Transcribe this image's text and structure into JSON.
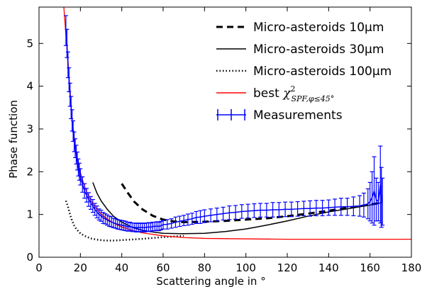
{
  "chart_data": {
    "type": "line",
    "xlabel": "Scattering angle in °",
    "ylabel": "Phase function",
    "xlim": [
      0,
      180
    ],
    "ylim": [
      0,
      5.85
    ],
    "x_ticks": [
      0,
      20,
      40,
      60,
      80,
      100,
      120,
      140,
      160,
      180
    ],
    "y_ticks": [
      0,
      1,
      2,
      3,
      4,
      5
    ],
    "grid": false,
    "legend_position": "top-right",
    "series": [
      {
        "name": "Micro-asteroids 10μm",
        "style": "dashed",
        "color": "#000000",
        "x": [
          40,
          43,
          46,
          50,
          55,
          60,
          65,
          70,
          80,
          90,
          100,
          110,
          120,
          130,
          140,
          150,
          160,
          166
        ],
        "y": [
          1.72,
          1.5,
          1.3,
          1.12,
          0.97,
          0.88,
          0.84,
          0.82,
          0.83,
          0.85,
          0.88,
          0.91,
          0.96,
          1.02,
          1.09,
          1.16,
          1.23,
          1.28
        ]
      },
      {
        "name": "Micro-asteroids 30μm",
        "style": "solid",
        "color": "#000000",
        "x": [
          26,
          28,
          30,
          33,
          36,
          40,
          45,
          50,
          55,
          60,
          70,
          80,
          90,
          100,
          110,
          120,
          130,
          140,
          150,
          160,
          166
        ],
        "y": [
          1.75,
          1.5,
          1.32,
          1.12,
          0.96,
          0.82,
          0.7,
          0.63,
          0.59,
          0.56,
          0.55,
          0.56,
          0.6,
          0.66,
          0.75,
          0.85,
          0.96,
          1.06,
          1.14,
          1.22,
          1.28
        ]
      },
      {
        "name": "Micro-asteroids 100μm",
        "style": "dotted",
        "color": "#000000",
        "x": [
          13,
          14,
          15,
          16,
          17,
          18,
          20,
          22,
          25,
          28,
          32,
          36,
          40,
          50,
          60,
          70
        ],
        "y": [
          1.32,
          1.18,
          1.0,
          0.85,
          0.74,
          0.66,
          0.56,
          0.5,
          0.44,
          0.41,
          0.39,
          0.39,
          0.4,
          0.43,
          0.47,
          0.5
        ]
      },
      {
        "name": "best",
        "name_math": "χ",
        "name_sup": "2",
        "name_sub": "SPF,φ≤45°",
        "style": "solid",
        "color": "#ff0000",
        "x": [
          12,
          13,
          14,
          15,
          16,
          17,
          18,
          19,
          20,
          22,
          24,
          26,
          28,
          30,
          33,
          36,
          40,
          45,
          50,
          60,
          70,
          80,
          100,
          120,
          140,
          160,
          180
        ],
        "y": [
          5.85,
          5.2,
          4.6,
          3.9,
          3.2,
          2.8,
          2.45,
          2.2,
          1.98,
          1.65,
          1.42,
          1.25,
          1.12,
          1.01,
          0.89,
          0.8,
          0.71,
          0.63,
          0.57,
          0.5,
          0.46,
          0.44,
          0.43,
          0.42,
          0.42,
          0.42,
          0.42
        ]
      },
      {
        "name": "Measurements",
        "style": "errorbar",
        "color": "#0000ff",
        "x": [
          13,
          13.5,
          14,
          14.5,
          15,
          15.5,
          16,
          16.5,
          17,
          17.5,
          18,
          18.5,
          19,
          19.5,
          20,
          21,
          22,
          23,
          24,
          25,
          26,
          27,
          28,
          29,
          30,
          31,
          32,
          33,
          34,
          35,
          36,
          37,
          38,
          39,
          40,
          41,
          42,
          43,
          44,
          45,
          46,
          47,
          48,
          49,
          50,
          51,
          52,
          53,
          54,
          55,
          56,
          57,
          58,
          59,
          60,
          62,
          64,
          66,
          68,
          70,
          72,
          74,
          76,
          78,
          80,
          83,
          86,
          89,
          92,
          95,
          98,
          101,
          104,
          107,
          110,
          113,
          116,
          119,
          122,
          125,
          128,
          131,
          134,
          137,
          140,
          143,
          146,
          149,
          152,
          155,
          157,
          159,
          160,
          161,
          162,
          163,
          164,
          165,
          165.5,
          166
        ],
        "y": [
          5.3,
          5.0,
          4.5,
          4.15,
          3.8,
          3.5,
          3.2,
          2.95,
          2.7,
          2.55,
          2.4,
          2.25,
          2.1,
          2.0,
          1.88,
          1.7,
          1.55,
          1.45,
          1.35,
          1.27,
          1.2,
          1.12,
          1.06,
          1.0,
          0.97,
          0.92,
          0.9,
          0.87,
          0.84,
          0.83,
          0.8,
          0.79,
          0.77,
          0.76,
          0.75,
          0.74,
          0.73,
          0.71,
          0.72,
          0.7,
          0.7,
          0.69,
          0.7,
          0.69,
          0.7,
          0.69,
          0.7,
          0.71,
          0.7,
          0.72,
          0.72,
          0.73,
          0.72,
          0.74,
          0.76,
          0.77,
          0.79,
          0.82,
          0.84,
          0.86,
          0.88,
          0.9,
          0.93,
          0.94,
          0.96,
          0.98,
          1.0,
          1.02,
          1.04,
          1.05,
          1.07,
          1.08,
          1.09,
          1.1,
          1.1,
          1.11,
          1.11,
          1.12,
          1.12,
          1.13,
          1.14,
          1.14,
          1.15,
          1.15,
          1.16,
          1.17,
          1.18,
          1.18,
          1.19,
          1.2,
          1.22,
          1.25,
          1.3,
          1.4,
          1.55,
          1.35,
          1.3,
          1.7,
          1.4,
          1.3
        ],
        "err": [
          0.35,
          0.33,
          0.3,
          0.28,
          0.27,
          0.26,
          0.25,
          0.24,
          0.23,
          0.22,
          0.22,
          0.21,
          0.2,
          0.2,
          0.19,
          0.18,
          0.17,
          0.16,
          0.16,
          0.15,
          0.15,
          0.14,
          0.14,
          0.13,
          0.13,
          0.13,
          0.12,
          0.12,
          0.12,
          0.12,
          0.11,
          0.11,
          0.11,
          0.11,
          0.11,
          0.11,
          0.11,
          0.1,
          0.1,
          0.1,
          0.1,
          0.1,
          0.1,
          0.1,
          0.1,
          0.1,
          0.1,
          0.1,
          0.1,
          0.1,
          0.1,
          0.1,
          0.1,
          0.1,
          0.1,
          0.11,
          0.11,
          0.12,
          0.12,
          0.12,
          0.13,
          0.13,
          0.14,
          0.15,
          0.15,
          0.15,
          0.15,
          0.15,
          0.16,
          0.16,
          0.16,
          0.16,
          0.16,
          0.16,
          0.16,
          0.17,
          0.17,
          0.17,
          0.17,
          0.17,
          0.17,
          0.18,
          0.18,
          0.18,
          0.18,
          0.19,
          0.2,
          0.2,
          0.22,
          0.24,
          0.28,
          0.35,
          0.45,
          0.6,
          0.8,
          0.5,
          0.45,
          0.9,
          0.7,
          0.55
        ]
      }
    ]
  }
}
